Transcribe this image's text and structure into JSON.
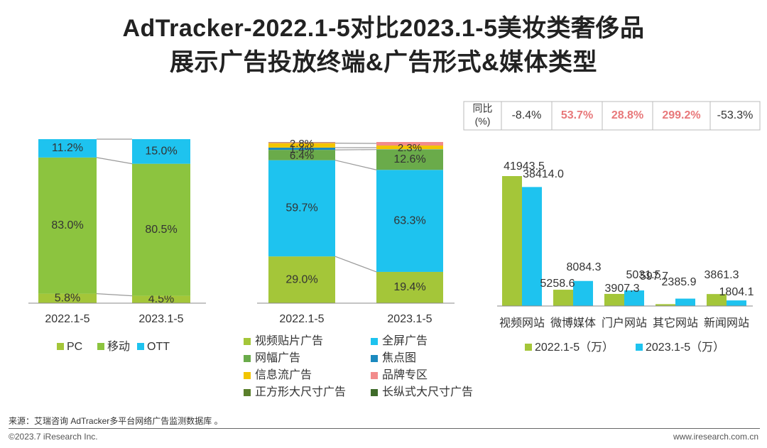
{
  "title_line1": "AdTracker-2022.1-5对比2023.1-5美妆类奢侈品",
  "title_line2": "展示广告投放终端&广告形式&媒体类型",
  "chart_data": [
    {
      "type": "bar",
      "stacked": true,
      "name": "terminal",
      "categories": [
        "2022.1-5",
        "2023.1-5"
      ],
      "series": [
        {
          "name": "PC",
          "color": "#A4C639",
          "values": [
            5.8,
            4.5
          ]
        },
        {
          "name": "移动",
          "color": "#8CC43F",
          "values": [
            83.0,
            80.5
          ]
        },
        {
          "name": "OTT",
          "color": "#1EC3EF",
          "values": [
            11.2,
            15.0
          ]
        }
      ],
      "labels": [
        [
          "5.8%",
          "4.5%"
        ],
        [
          "83.0%",
          "80.5%"
        ],
        [
          "11.2%",
          "15.0%"
        ]
      ],
      "legend": [
        "PC",
        "移动",
        "OTT"
      ],
      "legend_colors": [
        "#A4C639",
        "#8CC43F",
        "#1EC3EF"
      ]
    },
    {
      "type": "bar",
      "stacked": true,
      "name": "ad_format",
      "categories": [
        "2022.1-5",
        "2023.1-5"
      ],
      "series": [
        {
          "name": "视频贴片广告",
          "color": "#A4C639",
          "values": [
            29.0,
            19.4
          ]
        },
        {
          "name": "全屏广告",
          "color": "#1EC3EF",
          "values": [
            59.7,
            63.3
          ]
        },
        {
          "name": "网幅广告",
          "color": "#6AAB4A",
          "values": [
            6.4,
            12.6
          ]
        },
        {
          "name": "焦点图",
          "color": "#1B8ABF",
          "values": [
            1.4,
            0.2
          ]
        },
        {
          "name": "信息流广告",
          "color": "#F2C500",
          "values": [
            2.8,
            2.3
          ]
        },
        {
          "name": "品牌专区",
          "color": "#F28B8B",
          "values": [
            0.5,
            2.2
          ]
        },
        {
          "name": "正方形大尺寸广告",
          "color": "#5A7F2B",
          "values": [
            0.1,
            0.0
          ]
        },
        {
          "name": "长纵式大尺寸广告",
          "color": "#3F6B2A",
          "values": [
            0.1,
            0.0
          ]
        }
      ],
      "data_labels": {
        "bar1": [
          "29.0%",
          "59.7%",
          "6.4%",
          "1.4%",
          "2.8%"
        ],
        "bar2": [
          "19.4%",
          "63.3%",
          "12.6%",
          "2.3%"
        ]
      },
      "legend": [
        "视频贴片广告",
        "全屏广告",
        "网幅广告",
        "焦点图",
        "信息流广告",
        "品牌专区",
        "正方形大尺寸广告",
        "长纵式大尺寸广告"
      ],
      "legend_colors": [
        "#A4C639",
        "#1EC3EF",
        "#6AAB4A",
        "#1B8ABF",
        "#F2C500",
        "#F28B8B",
        "#5A7F2B",
        "#3F6B2A"
      ]
    },
    {
      "type": "bar",
      "name": "media_type",
      "categories": [
        "视频网站",
        "微博媒体",
        "门户网站",
        "其它网站",
        "新闻网站"
      ],
      "series": [
        {
          "name": "2022.1-5（万）",
          "color": "#A4C639",
          "values": [
            41943.5,
            5258.6,
            3907.3,
            597.7,
            3861.3
          ]
        },
        {
          "name": "2023.1-5（万）",
          "color": "#1EC3EF",
          "values": [
            38414.0,
            8084.3,
            5031.5,
            2385.9,
            1804.1
          ]
        }
      ],
      "value_labels": [
        [
          "41943.5",
          "5258.6",
          "3907.3",
          "597.7",
          "3861.3"
        ],
        [
          "38414.0",
          "8084.3",
          "5031.5",
          "2385.9",
          "1804.1"
        ]
      ],
      "ylim": [
        0,
        45000
      ],
      "yoy_header": "同比\n(%)",
      "yoy": [
        "-8.4%",
        "53.7%",
        "28.8%",
        "299.2%",
        "-53.3%"
      ],
      "yoy_colors": [
        "#333333",
        "#E8787A",
        "#E8787A",
        "#E8787A",
        "#333333"
      ]
    }
  ],
  "footer": {
    "source": "来源：艾瑞咨询 AdTracker多平台网络广告监测数据库 。",
    "copyright": "©2023.7 iResearch Inc.",
    "website": "www.iresearch.com.cn"
  }
}
